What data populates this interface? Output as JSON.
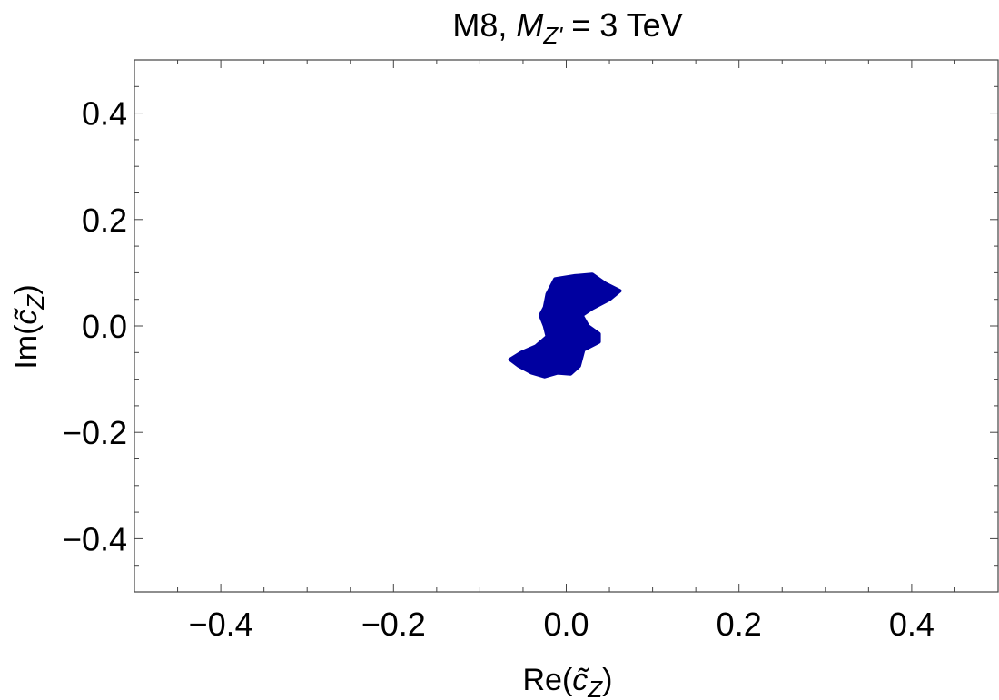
{
  "chart_data": {
    "type": "area",
    "title": {
      "prefix": "M8, ",
      "symbol": "M",
      "subscript": "Z'",
      "suffix": " = 3 TeV"
    },
    "xlabel": {
      "before": "Re(",
      "symbol": "c̃",
      "subscript": "Z",
      "after": ")"
    },
    "ylabel": {
      "before": "Im(",
      "symbol": "c̃",
      "subscript": "Z",
      "after": ")"
    },
    "xlim": [
      -0.5,
      0.5
    ],
    "ylim": [
      -0.5,
      0.5
    ],
    "xticks": [
      -0.4,
      -0.2,
      0.0,
      0.2,
      0.4
    ],
    "yticks": [
      -0.4,
      -0.2,
      0.0,
      0.2,
      0.4
    ],
    "xtick_labels": [
      "−0.4",
      "−0.2",
      "0.0",
      "0.2",
      "0.4"
    ],
    "ytick_labels": [
      "−0.4",
      "−0.2",
      "0.0",
      "0.2",
      "0.4"
    ],
    "minor_tick_step": 0.05,
    "grid": false,
    "series": [
      {
        "color": "#0000a0",
        "region": [
          [
            -0.013,
            0.088
          ],
          [
            0.01,
            0.094
          ],
          [
            0.03,
            0.097
          ],
          [
            0.045,
            0.08
          ],
          [
            0.062,
            0.066
          ],
          [
            0.05,
            0.05
          ],
          [
            0.03,
            0.033
          ],
          [
            0.018,
            0.02
          ],
          [
            0.025,
            0.0
          ],
          [
            0.038,
            -0.015
          ],
          [
            0.038,
            -0.03
          ],
          [
            0.02,
            -0.045
          ],
          [
            0.015,
            -0.075
          ],
          [
            0.005,
            -0.09
          ],
          [
            -0.01,
            -0.088
          ],
          [
            -0.025,
            -0.095
          ],
          [
            -0.04,
            -0.088
          ],
          [
            -0.055,
            -0.075
          ],
          [
            -0.065,
            -0.063
          ],
          [
            -0.052,
            -0.05
          ],
          [
            -0.035,
            -0.038
          ],
          [
            -0.022,
            -0.02
          ],
          [
            -0.025,
            0.0
          ],
          [
            -0.03,
            0.02
          ],
          [
            -0.025,
            0.035
          ],
          [
            -0.022,
            0.06
          ]
        ]
      }
    ]
  }
}
